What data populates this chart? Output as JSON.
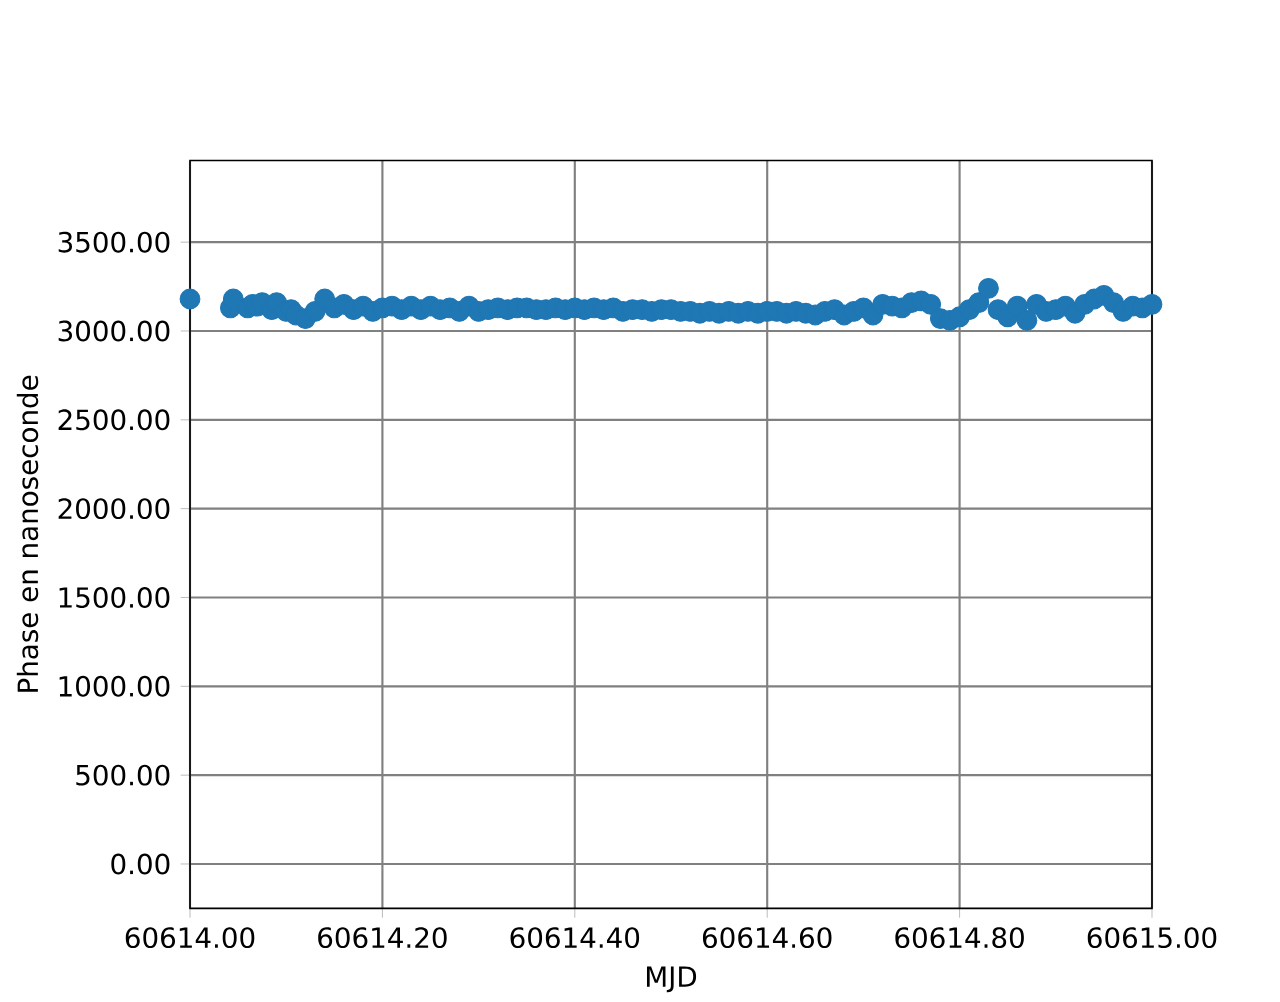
{
  "chart_data": {
    "type": "scatter",
    "xlabel": "MJD",
    "ylabel": "Phase en nanoseconde",
    "x": [
      60614.0,
      60614.042,
      60614.045,
      60614.06,
      60614.065,
      60614.07,
      60614.075,
      60614.085,
      60614.09,
      60614.1,
      60614.105,
      60614.11,
      60614.12,
      60614.13,
      60614.14,
      60614.15,
      60614.16,
      60614.17,
      60614.18,
      60614.19,
      60614.2,
      60614.21,
      60614.22,
      60614.23,
      60614.24,
      60614.25,
      60614.26,
      60614.27,
      60614.28,
      60614.29,
      60614.3,
      60614.31,
      60614.32,
      60614.33,
      60614.34,
      60614.35,
      60614.36,
      60614.37,
      60614.38,
      60614.39,
      60614.4,
      60614.41,
      60614.42,
      60614.43,
      60614.44,
      60614.45,
      60614.46,
      60614.47,
      60614.48,
      60614.49,
      60614.5,
      60614.51,
      60614.52,
      60614.53,
      60614.54,
      60614.55,
      60614.56,
      60614.57,
      60614.58,
      60614.59,
      60614.6,
      60614.61,
      60614.62,
      60614.63,
      60614.64,
      60614.65,
      60614.66,
      60614.67,
      60614.68,
      60614.69,
      60614.7,
      60614.71,
      60614.72,
      60614.73,
      60614.74,
      60614.75,
      60614.76,
      60614.77,
      60614.78,
      60614.79,
      60614.8,
      60614.81,
      60614.82,
      60614.83,
      60614.84,
      60614.85,
      60614.86,
      60614.87,
      60614.88,
      60614.89,
      60614.9,
      60614.91,
      60614.92,
      60614.93,
      60614.94,
      60614.95,
      60614.96,
      60614.97,
      60614.98,
      60614.99,
      60615.0
    ],
    "series": [
      {
        "color": "#1f77b4",
        "values": [
          3180,
          3130,
          3180,
          3130,
          3150,
          3140,
          3160,
          3120,
          3160,
          3110,
          3120,
          3090,
          3070,
          3110,
          3180,
          3130,
          3150,
          3120,
          3140,
          3110,
          3130,
          3140,
          3120,
          3140,
          3120,
          3140,
          3120,
          3130,
          3110,
          3140,
          3110,
          3120,
          3130,
          3120,
          3130,
          3130,
          3120,
          3120,
          3130,
          3120,
          3130,
          3120,
          3130,
          3120,
          3130,
          3110,
          3120,
          3120,
          3110,
          3120,
          3120,
          3110,
          3110,
          3100,
          3110,
          3100,
          3110,
          3100,
          3110,
          3100,
          3110,
          3110,
          3100,
          3110,
          3100,
          3090,
          3110,
          3120,
          3090,
          3110,
          3130,
          3090,
          3150,
          3140,
          3130,
          3160,
          3170,
          3150,
          3070,
          3060,
          3080,
          3120,
          3160,
          3240,
          3120,
          3080,
          3140,
          3060,
          3150,
          3110,
          3120,
          3140,
          3100,
          3150,
          3180,
          3200,
          3160,
          3110,
          3140,
          3130,
          3150
        ]
      }
    ],
    "xlim": [
      60614.0,
      60615.0
    ],
    "ylim": [
      -250,
      3960
    ],
    "xticks": [
      {
        "value": 60614.0,
        "label": "60614.00"
      },
      {
        "value": 60614.2,
        "label": "60614.20"
      },
      {
        "value": 60614.4,
        "label": "60614.40"
      },
      {
        "value": 60614.6,
        "label": "60614.60"
      },
      {
        "value": 60614.8,
        "label": "60614.80"
      },
      {
        "value": 60615.0,
        "label": "60615.00"
      }
    ],
    "yticks": [
      {
        "value": 0,
        "label": "0.00"
      },
      {
        "value": 500,
        "label": "500.00"
      },
      {
        "value": 1000,
        "label": "1000.00"
      },
      {
        "value": 1500,
        "label": "1500.00"
      },
      {
        "value": 2000,
        "label": "2000.00"
      },
      {
        "value": 2500,
        "label": "2500.00"
      },
      {
        "value": 3000,
        "label": "3000.00"
      },
      {
        "value": 3500,
        "label": "3500.00"
      }
    ],
    "grid": true,
    "marker": "circle"
  }
}
